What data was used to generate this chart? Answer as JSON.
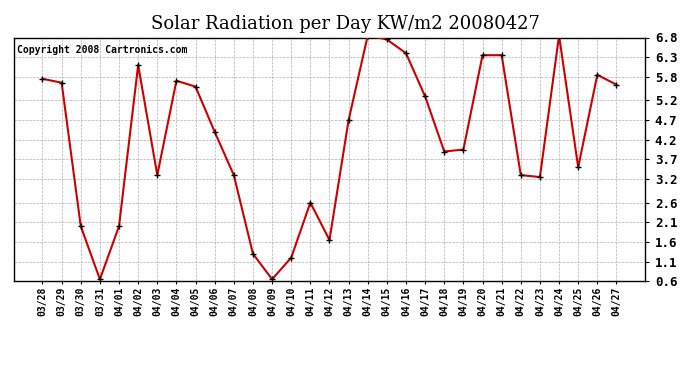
{
  "title": "Solar Radiation per Day KW/m2 20080427",
  "copyright": "Copyright 2008 Cartronics.com",
  "x_labels": [
    "03/28",
    "03/29",
    "03/30",
    "03/31",
    "04/01",
    "04/02",
    "04/03",
    "04/04",
    "04/05",
    "04/06",
    "04/07",
    "04/08",
    "04/09",
    "04/10",
    "04/11",
    "04/12",
    "04/13",
    "04/14",
    "04/15",
    "04/16",
    "04/17",
    "04/18",
    "04/19",
    "04/20",
    "04/21",
    "04/22",
    "04/23",
    "04/24",
    "04/25",
    "04/26",
    "04/27"
  ],
  "values": [
    5.75,
    5.65,
    2.0,
    0.65,
    2.0,
    6.1,
    3.3,
    5.7,
    5.55,
    4.4,
    3.3,
    1.3,
    0.65,
    1.2,
    2.6,
    1.65,
    4.7,
    6.85,
    6.75,
    6.4,
    5.3,
    3.9,
    3.95,
    6.35,
    6.35,
    3.3,
    3.25,
    6.85,
    3.5,
    5.85,
    5.6
  ],
  "ylim": [
    0.6,
    6.8
  ],
  "yticks": [
    0.6,
    1.1,
    1.6,
    2.1,
    2.6,
    3.2,
    3.7,
    4.2,
    4.7,
    5.2,
    5.8,
    6.3,
    6.8
  ],
  "line_color": "#cc0000",
  "marker_color": "#000000",
  "bg_color": "#ffffff",
  "plot_bg_color": "#ffffff",
  "grid_color": "#b0b0b0",
  "title_fontsize": 13,
  "copyright_fontsize": 7,
  "xtick_fontsize": 7,
  "ytick_fontsize": 9
}
